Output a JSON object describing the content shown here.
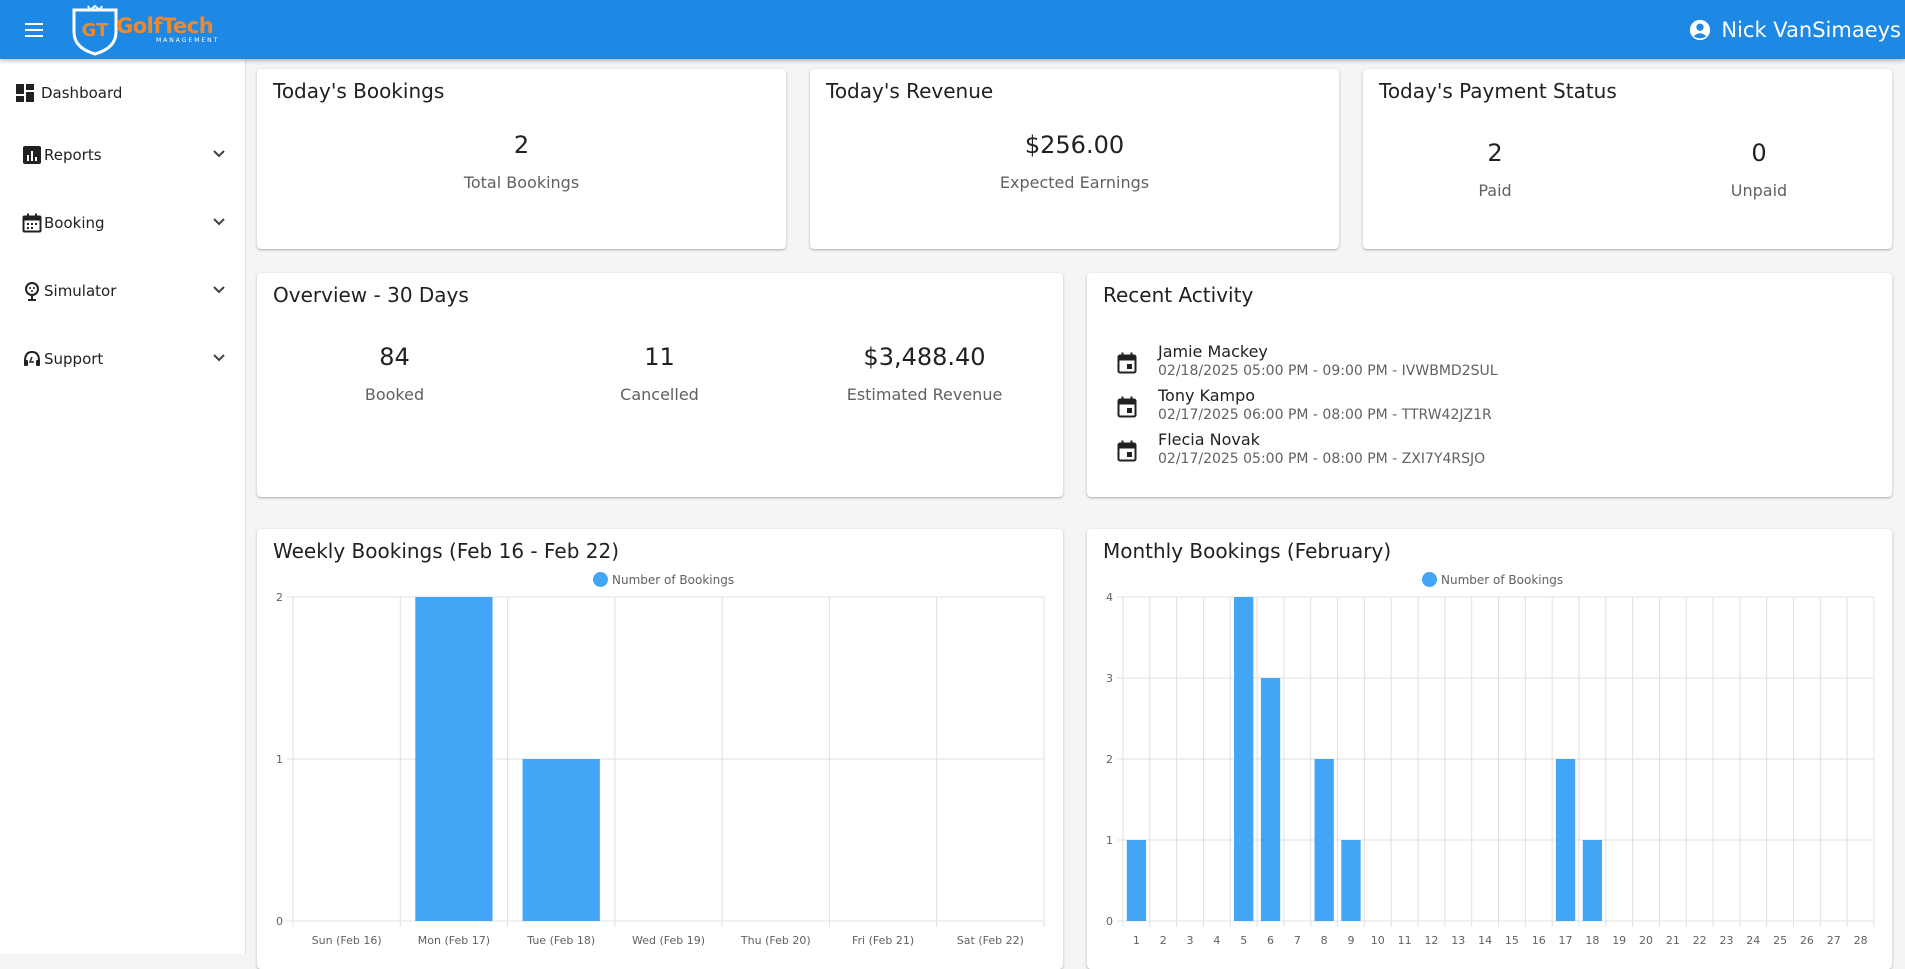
{
  "header": {
    "logo_name": "GolfTech",
    "logo_sub": "MANAGEMENT",
    "user_name": "Nick VanSimaeys"
  },
  "sidebar": {
    "items": [
      {
        "label": "Dashboard",
        "icon": "dashboard-icon",
        "expandable": false
      },
      {
        "label": "Reports",
        "icon": "reports-icon",
        "expandable": true
      },
      {
        "label": "Booking",
        "icon": "calendar-icon",
        "expandable": true
      },
      {
        "label": "Simulator",
        "icon": "golf-pin-icon",
        "expandable": true
      },
      {
        "label": "Support",
        "icon": "headset-icon",
        "expandable": true
      }
    ]
  },
  "todays_bookings": {
    "title": "Today's Bookings",
    "value": "2",
    "label": "Total Bookings"
  },
  "todays_revenue": {
    "title": "Today's Revenue",
    "value": "$256.00",
    "label": "Expected Earnings"
  },
  "payment_status": {
    "title": "Today's Payment Status",
    "paid_value": "2",
    "paid_label": "Paid",
    "unpaid_value": "0",
    "unpaid_label": "Unpaid"
  },
  "overview": {
    "title": "Overview - 30 Days",
    "booked_value": "84",
    "booked_label": "Booked",
    "cancelled_value": "11",
    "cancelled_label": "Cancelled",
    "revenue_value": "$3,488.40",
    "revenue_label": "Estimated Revenue"
  },
  "recent_activity": {
    "title": "Recent Activity",
    "items": [
      {
        "name": "Jamie Mackey",
        "detail": "02/18/2025 05:00 PM - 09:00 PM - IVWBMD2SUL"
      },
      {
        "name": "Tony Kampo",
        "detail": "02/17/2025 06:00 PM - 08:00 PM - TTRW42JZ1R"
      },
      {
        "name": "Flecia Novak",
        "detail": "02/17/2025 05:00 PM - 08:00 PM - ZXI7Y4RSJO"
      }
    ]
  },
  "weekly": {
    "title": "Weekly Bookings (Feb 16 - Feb 22)"
  },
  "monthly": {
    "title": "Monthly Bookings (February)"
  },
  "colors": {
    "primary": "#1e88e5",
    "bar": "#42a5f5",
    "logo_accent": "#ef8a2c"
  },
  "chart_data": [
    {
      "type": "bar",
      "title": "Weekly Bookings (Feb 16 - Feb 22)",
      "categories": [
        "Sun (Feb 16)",
        "Mon (Feb 17)",
        "Tue (Feb 18)",
        "Wed (Feb 19)",
        "Thu (Feb 20)",
        "Fri (Feb 21)",
        "Sat (Feb 22)"
      ],
      "series": [
        {
          "name": "Number of Bookings",
          "values": [
            0,
            2,
            1,
            0,
            0,
            0,
            0
          ]
        }
      ],
      "ylim": [
        0,
        2
      ],
      "yticks": [
        "0",
        "1",
        "2"
      ],
      "grid": true,
      "legend": "top-center"
    },
    {
      "type": "bar",
      "title": "Monthly Bookings (February)",
      "categories": [
        "1",
        "2",
        "3",
        "4",
        "5",
        "6",
        "7",
        "8",
        "9",
        "10",
        "11",
        "12",
        "13",
        "14",
        "15",
        "16",
        "17",
        "18",
        "19",
        "20",
        "21",
        "22",
        "23",
        "24",
        "25",
        "26",
        "27",
        "28"
      ],
      "series": [
        {
          "name": "Number of Bookings",
          "values": [
            1,
            0,
            0,
            0,
            4,
            3,
            0,
            2,
            1,
            0,
            0,
            0,
            0,
            0,
            0,
            0,
            2,
            1,
            0,
            0,
            0,
            0,
            0,
            0,
            0,
            0,
            0,
            0
          ]
        }
      ],
      "ylim": [
        0,
        4
      ],
      "yticks": [
        "0",
        "1",
        "2",
        "3",
        "4"
      ],
      "grid": true,
      "legend": "top-center"
    }
  ]
}
